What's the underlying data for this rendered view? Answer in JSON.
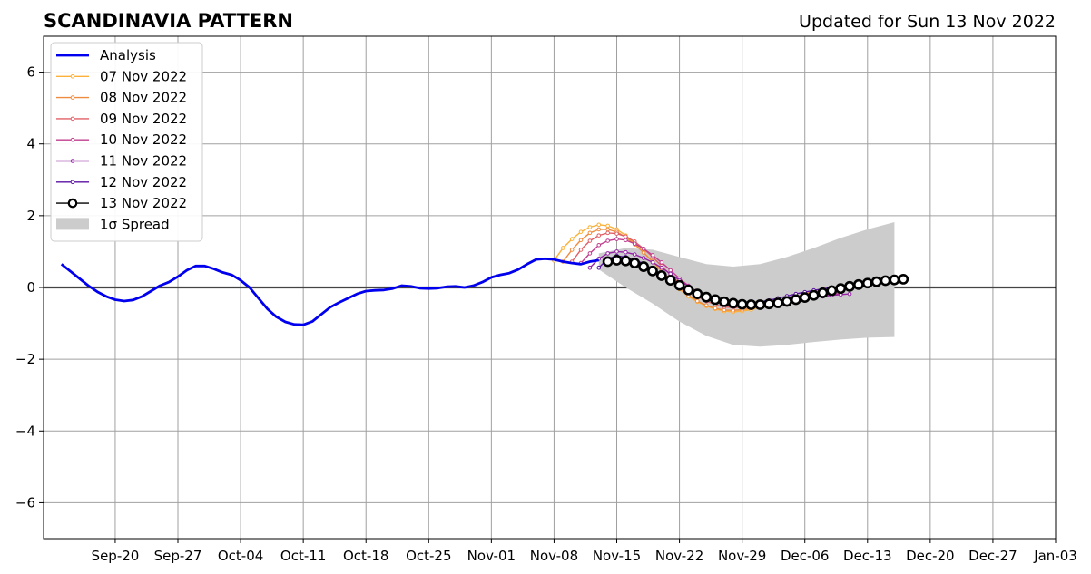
{
  "chart_data": {
    "type": "line",
    "title": "SCANDINAVIA PATTERN",
    "subtitle": "Updated for Sun 13 Nov 2022",
    "xlabel": "",
    "ylabel": "",
    "x_range": [
      "2022-09-12",
      "2023-01-03"
    ],
    "ylim": [
      -7,
      7
    ],
    "y_ticks": [
      -6,
      -4,
      -2,
      0,
      2,
      4,
      6
    ],
    "y_tick_labels": [
      "−6",
      "−4",
      "−2",
      "0",
      "2",
      "4",
      "6"
    ],
    "x_ticks": [
      "2022-09-20",
      "2022-09-27",
      "2022-10-04",
      "2022-10-11",
      "2022-10-18",
      "2022-10-25",
      "2022-11-01",
      "2022-11-08",
      "2022-11-15",
      "2022-11-22",
      "2022-11-29",
      "2022-12-06",
      "2022-12-13",
      "2022-12-20",
      "2022-12-27",
      "2023-01-03"
    ],
    "x_tick_labels": [
      "Sep-20",
      "Sep-27",
      "Oct-04",
      "Oct-11",
      "Oct-18",
      "Oct-25",
      "Nov-01",
      "Nov-08",
      "Nov-15",
      "Nov-22",
      "Nov-29",
      "Dec-06",
      "Dec-13",
      "Dec-20",
      "Dec-27",
      "Jan-03"
    ],
    "grid": true,
    "legend_position": "top-left",
    "analysis": {
      "name": "Analysis",
      "color": "#0000ee",
      "points": [
        [
          "2022-09-14",
          0.65
        ],
        [
          "2022-09-15",
          0.45
        ],
        [
          "2022-09-16",
          0.25
        ],
        [
          "2022-09-17",
          0.05
        ],
        [
          "2022-09-18",
          -0.12
        ],
        [
          "2022-09-19",
          -0.25
        ],
        [
          "2022-09-20",
          -0.34
        ],
        [
          "2022-09-21",
          -0.38
        ],
        [
          "2022-09-22",
          -0.35
        ],
        [
          "2022-09-23",
          -0.25
        ],
        [
          "2022-09-24",
          -0.1
        ],
        [
          "2022-09-25",
          0.05
        ],
        [
          "2022-09-26",
          0.15
        ],
        [
          "2022-09-27",
          0.3
        ],
        [
          "2022-09-28",
          0.48
        ],
        [
          "2022-09-29",
          0.6
        ],
        [
          "2022-09-30",
          0.6
        ],
        [
          "2022-10-01",
          0.52
        ],
        [
          "2022-10-02",
          0.42
        ],
        [
          "2022-10-03",
          0.35
        ],
        [
          "2022-10-04",
          0.2
        ],
        [
          "2022-10-05",
          0.0
        ],
        [
          "2022-10-06",
          -0.3
        ],
        [
          "2022-10-07",
          -0.6
        ],
        [
          "2022-10-08",
          -0.82
        ],
        [
          "2022-10-09",
          -0.96
        ],
        [
          "2022-10-10",
          -1.03
        ],
        [
          "2022-10-11",
          -1.04
        ],
        [
          "2022-10-12",
          -0.95
        ],
        [
          "2022-10-13",
          -0.75
        ],
        [
          "2022-10-14",
          -0.55
        ],
        [
          "2022-10-15",
          -0.42
        ],
        [
          "2022-10-16",
          -0.3
        ],
        [
          "2022-10-17",
          -0.18
        ],
        [
          "2022-10-18",
          -0.1
        ],
        [
          "2022-10-19",
          -0.08
        ],
        [
          "2022-10-20",
          -0.07
        ],
        [
          "2022-10-21",
          -0.03
        ],
        [
          "2022-10-22",
          0.05
        ],
        [
          "2022-10-23",
          0.03
        ],
        [
          "2022-10-24",
          -0.02
        ],
        [
          "2022-10-25",
          -0.03
        ],
        [
          "2022-10-26",
          -0.02
        ],
        [
          "2022-10-27",
          0.02
        ],
        [
          "2022-10-28",
          0.03
        ],
        [
          "2022-10-29",
          0.0
        ],
        [
          "2022-10-30",
          0.05
        ],
        [
          "2022-10-31",
          0.15
        ],
        [
          "2022-11-01",
          0.28
        ],
        [
          "2022-11-02",
          0.35
        ],
        [
          "2022-11-03",
          0.4
        ],
        [
          "2022-11-04",
          0.5
        ],
        [
          "2022-11-05",
          0.65
        ],
        [
          "2022-11-06",
          0.78
        ],
        [
          "2022-11-07",
          0.8
        ],
        [
          "2022-11-08",
          0.78
        ],
        [
          "2022-11-09",
          0.72
        ],
        [
          "2022-11-10",
          0.68
        ],
        [
          "2022-11-11",
          0.65
        ],
        [
          "2022-11-12",
          0.72
        ],
        [
          "2022-11-13",
          0.76
        ]
      ]
    },
    "series": [
      {
        "name": "07 Nov 2022",
        "color": "#fbb13a",
        "start": "2022-11-08",
        "values": [
          0.75,
          1.1,
          1.35,
          1.55,
          1.68,
          1.75,
          1.72,
          1.62,
          1.45,
          1.22,
          0.98,
          0.72,
          0.45,
          0.18,
          -0.05,
          -0.25,
          -0.4,
          -0.52,
          -0.6,
          -0.66,
          -0.68,
          -0.66,
          -0.62,
          -0.55,
          -0.48,
          -0.42,
          -0.35,
          -0.28,
          -0.2,
          -0.12
        ]
      },
      {
        "name": "08 Nov 2022",
        "color": "#ef8b3f",
        "start": "2022-11-09",
        "values": [
          0.72,
          1.05,
          1.32,
          1.52,
          1.62,
          1.62,
          1.55,
          1.4,
          1.2,
          0.97,
          0.72,
          0.46,
          0.2,
          -0.03,
          -0.22,
          -0.38,
          -0.5,
          -0.58,
          -0.63,
          -0.64,
          -0.62,
          -0.58,
          -0.52,
          -0.46,
          -0.4,
          -0.33,
          -0.26,
          -0.18,
          -0.1,
          -0.03
        ]
      },
      {
        "name": "09 Nov 2022",
        "color": "#e05f66",
        "start": "2022-11-10",
        "values": [
          0.72,
          1.05,
          1.3,
          1.45,
          1.52,
          1.5,
          1.42,
          1.28,
          1.08,
          0.85,
          0.6,
          0.35,
          0.12,
          -0.08,
          -0.25,
          -0.38,
          -0.48,
          -0.54,
          -0.56,
          -0.55,
          -0.52,
          -0.48,
          -0.44,
          -0.4,
          -0.36,
          -0.32,
          -0.27,
          -0.22,
          -0.16,
          -0.1
        ]
      },
      {
        "name": "10 Nov 2022",
        "color": "#c13e8e",
        "start": "2022-11-11",
        "values": [
          0.68,
          0.95,
          1.18,
          1.3,
          1.35,
          1.32,
          1.22,
          1.08,
          0.9,
          0.7,
          0.48,
          0.25,
          0.05,
          -0.12,
          -0.26,
          -0.37,
          -0.45,
          -0.5,
          -0.52,
          -0.52,
          -0.5,
          -0.47,
          -0.44,
          -0.4,
          -0.36,
          -0.32,
          -0.28,
          -0.24,
          -0.2,
          -0.16
        ]
      },
      {
        "name": "11 Nov 2022",
        "color": "#9323a4",
        "start": "2022-11-12",
        "values": [
          0.55,
          0.8,
          0.95,
          1.0,
          0.98,
          0.92,
          0.82,
          0.7,
          0.55,
          0.38,
          0.2,
          0.03,
          -0.12,
          -0.24,
          -0.34,
          -0.4,
          -0.44,
          -0.46,
          -0.46,
          -0.45,
          -0.43,
          -0.4,
          -0.37,
          -0.34,
          -0.31,
          -0.28,
          -0.25,
          -0.22,
          -0.2,
          -0.18
        ]
      },
      {
        "name": "12 Nov 2022",
        "color": "#5a12a2",
        "start": "2022-11-13",
        "values": [
          0.55,
          0.8,
          0.88,
          0.85,
          0.78,
          0.66,
          0.52,
          0.36,
          0.2,
          0.05,
          -0.1,
          -0.22,
          -0.32,
          -0.4,
          -0.44,
          -0.46,
          -0.46,
          -0.44,
          -0.4,
          -0.36,
          -0.3,
          -0.24,
          -0.18,
          -0.13,
          -0.08,
          -0.04,
          0.0,
          0.03,
          0.06,
          0.08
        ]
      },
      {
        "name": "13 Nov 2022",
        "color": "#000000",
        "start": "2022-11-14",
        "values": [
          0.72,
          0.76,
          0.74,
          0.68,
          0.58,
          0.46,
          0.33,
          0.2,
          0.06,
          -0.07,
          -0.18,
          -0.27,
          -0.34,
          -0.4,
          -0.44,
          -0.47,
          -0.48,
          -0.48,
          -0.46,
          -0.43,
          -0.39,
          -0.34,
          -0.28,
          -0.22,
          -0.15,
          -0.09,
          -0.03,
          0.03,
          0.08,
          0.12,
          0.16,
          0.19,
          0.21,
          0.23
        ]
      }
    ],
    "spread": {
      "name": "1σ Spread",
      "color": "#cccccc",
      "x": [
        "2022-11-13",
        "2022-11-16",
        "2022-11-19",
        "2022-11-22",
        "2022-11-25",
        "2022-11-28",
        "2022-12-01",
        "2022-12-04",
        "2022-12-07",
        "2022-12-10",
        "2022-12-13",
        "2022-12-16"
      ],
      "upper": [
        0.95,
        1.1,
        1.05,
        0.85,
        0.65,
        0.58,
        0.65,
        0.85,
        1.1,
        1.38,
        1.62,
        1.82
      ],
      "lower": [
        0.5,
        0.0,
        -0.45,
        -0.95,
        -1.35,
        -1.6,
        -1.65,
        -1.6,
        -1.52,
        -1.45,
        -1.4,
        -1.38
      ]
    }
  }
}
